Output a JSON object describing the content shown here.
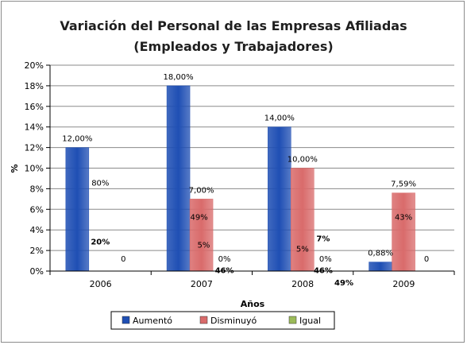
{
  "chart_data": {
    "type": "bar",
    "title": "Variación del Personal de las Empresas Afiliadas",
    "subtitle": "(Empleados y Trabajadores)",
    "xlabel": "Años",
    "ylabel": "%",
    "ylim": [
      0,
      20
    ],
    "y_ticks": [
      "0%",
      "2%",
      "4%",
      "6%",
      "8%",
      "10%",
      "12%",
      "14%",
      "16%",
      "18%",
      "20%"
    ],
    "categories": [
      "2006",
      "2007",
      "2008",
      "2009"
    ],
    "grid": true,
    "legend_position": "bottom",
    "series": [
      {
        "name": "Aumentó",
        "color": "#1f4fb4",
        "values": [
          12,
          18,
          14,
          0.88
        ],
        "labels": [
          "12,00%",
          "18,00%",
          "14,00%",
          "0,88%"
        ]
      },
      {
        "name": "Disminuyó",
        "color": "#d96b6b",
        "values": [
          0,
          7,
          10,
          7.59
        ],
        "labels": [
          "",
          "7,00%",
          "10,00%",
          "7,59%"
        ]
      },
      {
        "name": "Igual",
        "color": "#9bbb59",
        "values": [
          0,
          0,
          0,
          0
        ],
        "labels": [
          "0",
          "0%",
          "0%",
          "0"
        ]
      }
    ],
    "annotations": [
      {
        "text": "80%",
        "x": "2006",
        "y": 8.6,
        "bold": false,
        "size": 10
      },
      {
        "text": "20%",
        "x": "2006",
        "y": 2.9,
        "bold": true,
        "size": 10
      },
      {
        "text": "49%",
        "x": "2007",
        "y": 5.3,
        "bold": false,
        "size": 10
      },
      {
        "text": "5%",
        "x": "2007",
        "y": 2.6,
        "bold": false,
        "size": 10
      },
      {
        "text": "46%",
        "x": "2007",
        "y": 0.1,
        "bold": true,
        "size": 10
      },
      {
        "text": "7%",
        "x": "2008",
        "y": 3.2,
        "bold": true,
        "size": 10
      },
      {
        "text": "5%",
        "x": "2008",
        "y": 2.2,
        "bold": false,
        "size": 12
      },
      {
        "text": "46%",
        "x": "2008",
        "y": 0.1,
        "bold": true,
        "size": 10
      },
      {
        "text": "49%",
        "x": "2008",
        "y": -1.1,
        "bold": true,
        "size": 10
      },
      {
        "text": "43%",
        "x": "2009",
        "y": 5.3,
        "bold": false,
        "size": 10
      }
    ]
  }
}
